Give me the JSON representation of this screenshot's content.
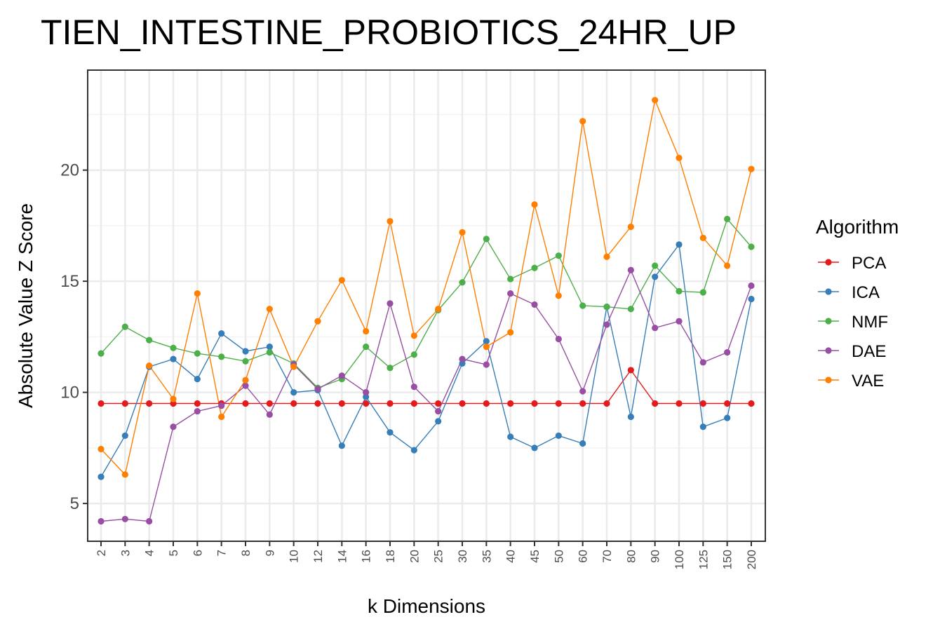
{
  "chart_data": {
    "type": "line",
    "title": "TIEN_INTESTINE_PROBIOTICS_24HR_UP",
    "xlabel": "k Dimensions",
    "ylabel": "Absolute Value Z Score",
    "x_scale": "categorical",
    "categories": [
      "2",
      "3",
      "4",
      "5",
      "6",
      "7",
      "8",
      "9",
      "10",
      "12",
      "14",
      "16",
      "18",
      "20",
      "25",
      "30",
      "35",
      "40",
      "45",
      "50",
      "60",
      "70",
      "80",
      "90",
      "100",
      "125",
      "150",
      "200"
    ],
    "yticks": [
      5,
      10,
      15,
      20
    ],
    "ylim": [
      3.3,
      24.5
    ],
    "grid": true,
    "legend": {
      "title": "Algorithm",
      "position": "right"
    },
    "series": [
      {
        "name": "PCA",
        "color": "#e41a1c",
        "values": [
          9.5,
          9.5,
          9.5,
          9.5,
          9.5,
          9.5,
          9.5,
          9.5,
          9.5,
          9.5,
          9.5,
          9.5,
          9.5,
          9.5,
          9.5,
          9.5,
          9.5,
          9.5,
          9.5,
          9.5,
          9.5,
          9.5,
          11.0,
          9.5,
          9.5,
          9.5,
          9.5,
          9.5
        ]
      },
      {
        "name": "ICA",
        "color": "#377eb8",
        "values": [
          6.2,
          8.05,
          11.15,
          11.5,
          10.6,
          12.65,
          11.85,
          12.05,
          10.0,
          10.1,
          7.6,
          9.8,
          8.2,
          7.4,
          8.7,
          11.3,
          12.3,
          8.0,
          7.5,
          8.05,
          7.7,
          13.85,
          8.9,
          15.2,
          16.65,
          8.45,
          8.85,
          14.2
        ]
      },
      {
        "name": "NMF",
        "color": "#4daf4a",
        "values": [
          11.75,
          12.95,
          12.35,
          12.0,
          11.75,
          11.6,
          11.4,
          11.8,
          11.3,
          10.2,
          10.6,
          12.05,
          11.1,
          11.7,
          13.7,
          14.95,
          16.9,
          15.1,
          15.6,
          16.15,
          13.9,
          13.85,
          13.75,
          15.7,
          14.55,
          14.5,
          17.8,
          16.55
        ]
      },
      {
        "name": "DAE",
        "color": "#984ea3",
        "values": [
          4.2,
          4.3,
          4.2,
          8.45,
          9.15,
          9.4,
          10.3,
          9.0,
          11.25,
          10.15,
          10.75,
          10.0,
          14.0,
          10.25,
          9.15,
          11.5,
          11.25,
          14.45,
          13.95,
          12.4,
          10.05,
          13.05,
          15.5,
          12.9,
          13.2,
          11.35,
          11.8,
          14.8
        ]
      },
      {
        "name": "VAE",
        "color": "#ff7f00",
        "values": [
          7.45,
          6.3,
          11.2,
          9.7,
          14.45,
          8.9,
          10.55,
          13.75,
          11.15,
          13.2,
          15.05,
          12.75,
          17.7,
          12.55,
          13.75,
          17.2,
          12.05,
          12.7,
          18.45,
          14.35,
          22.2,
          16.1,
          17.45,
          23.15,
          20.55,
          16.95,
          15.7,
          20.05
        ]
      }
    ]
  }
}
